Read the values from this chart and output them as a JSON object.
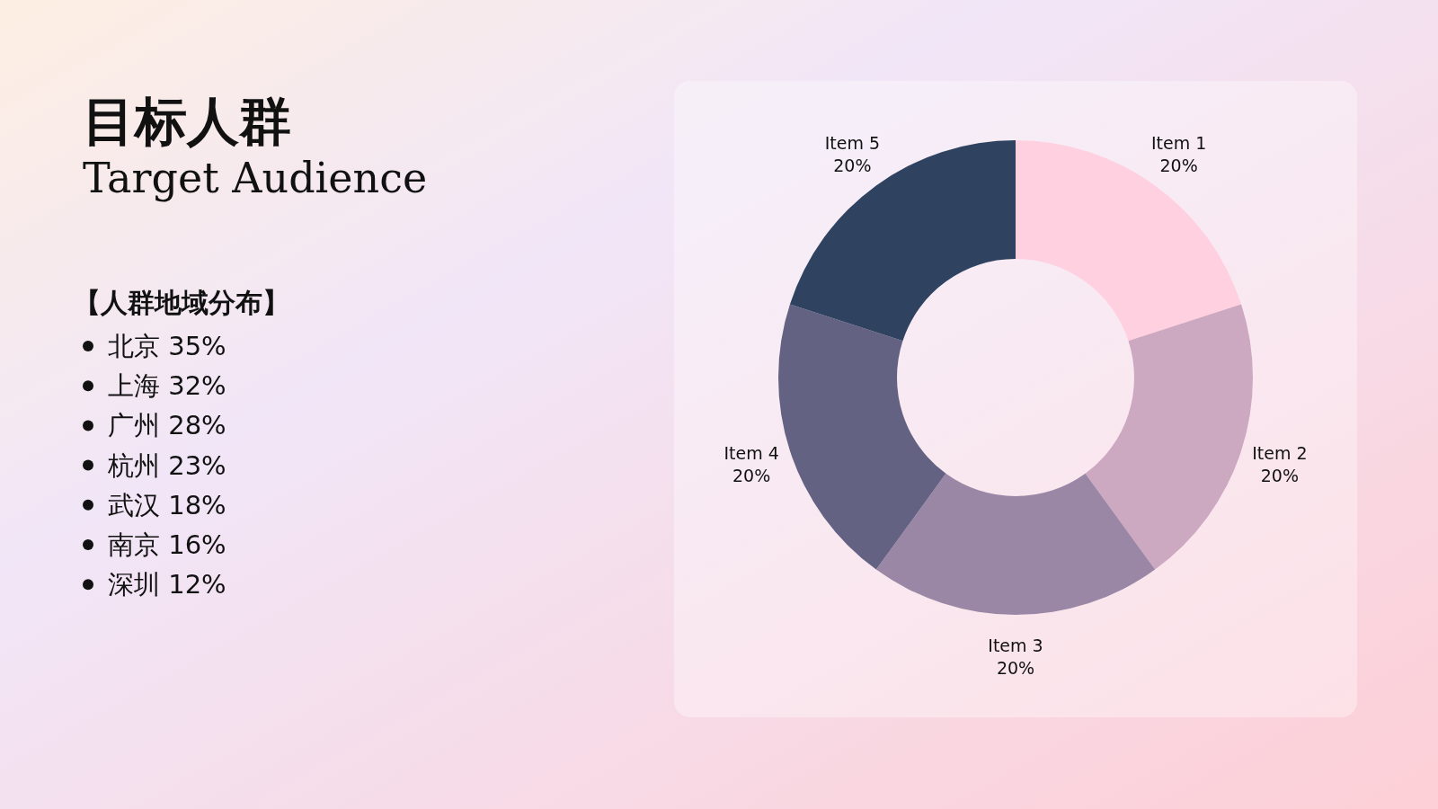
{
  "chart_data": {
    "type": "donut",
    "title": "目标人群",
    "subtitle": "Target Audience",
    "annotations": [
      "【人群地域分布】",
      "北京 35%",
      "上海 32%",
      "广州 28%",
      "杭州 23%",
      "武汉 18%",
      "南京 16%",
      "深圳 12%"
    ],
    "categories": [
      "Item 1",
      "Item 2",
      "Item 3",
      "Item 4",
      "Item 5"
    ],
    "values": [
      20,
      20,
      20,
      20,
      20
    ],
    "value_labels": [
      "20%",
      "20%",
      "20%",
      "20%",
      "20%"
    ],
    "colors": [
      "#ffd0df",
      "#cda8c1",
      "#9a87a6",
      "#636282",
      "#2f4360"
    ]
  }
}
